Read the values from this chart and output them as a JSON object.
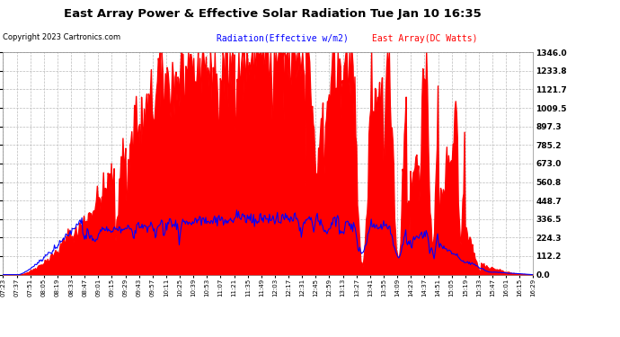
{
  "title": "East Array Power & Effective Solar Radiation Tue Jan 10 16:35",
  "copyright": "Copyright 2023 Cartronics.com",
  "legend_radiation": "Radiation(Effective w/m2)",
  "legend_east_array": "East Array(DC Watts)",
  "radiation_color": "blue",
  "east_array_color": "red",
  "background_color": "#ffffff",
  "plot_bg_color": "#ffffff",
  "grid_color": "#bbbbbb",
  "ylim": [
    0.0,
    1346.0
  ],
  "yticks": [
    0.0,
    112.2,
    224.3,
    336.5,
    448.7,
    560.8,
    673.0,
    785.2,
    897.3,
    1009.5,
    1121.7,
    1233.8,
    1346.0
  ],
  "x_tick_labels": [
    "07:23",
    "07:37",
    "07:51",
    "08:05",
    "08:19",
    "08:33",
    "08:47",
    "09:01",
    "09:15",
    "09:29",
    "09:43",
    "09:57",
    "10:11",
    "10:25",
    "10:39",
    "10:53",
    "11:07",
    "11:21",
    "11:35",
    "11:49",
    "12:03",
    "12:17",
    "12:31",
    "12:45",
    "12:59",
    "13:13",
    "13:27",
    "13:41",
    "13:55",
    "14:09",
    "14:23",
    "14:37",
    "14:51",
    "15:05",
    "15:19",
    "15:33",
    "15:47",
    "16:01",
    "16:15",
    "16:29"
  ],
  "num_ticks": 40,
  "seed": 42
}
